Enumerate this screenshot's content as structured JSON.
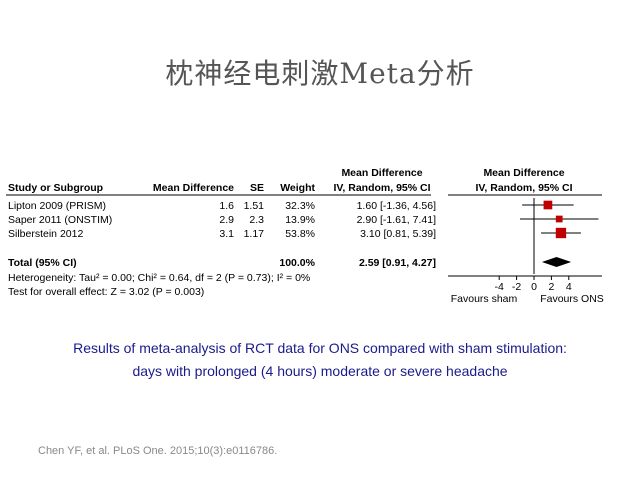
{
  "slide": {
    "title": "枕神经电刺激Meta分析",
    "caption_line1": "Results of meta-analysis of RCT data for ONS compared with sham stimulation:",
    "caption_line2": "days with prolonged (4 hours) moderate or severe headache",
    "citation": "Chen YF,  et al. PLoS One. 2015;10(3):e0116786."
  },
  "chart_data": {
    "type": "forest",
    "headers": {
      "study": "Study or Subgroup",
      "md": "Mean Difference",
      "se": "SE",
      "weight": "Weight",
      "ci_top": "Mean Difference",
      "ci_bottom": "IV, Random, 95% CI",
      "plot_top": "Mean Difference",
      "plot_bottom": "IV, Random, 95% CI"
    },
    "studies": [
      {
        "name": "Lipton 2009 (PRISM)",
        "md": 1.6,
        "md_text": "1.6",
        "se_text": "1.51",
        "weight": 32.3,
        "weight_text": "32.3%",
        "lo": -1.36,
        "hi": 4.56,
        "ci_text": "1.60 [-1.36, 4.56]"
      },
      {
        "name": "Saper 2011 (ONSTIM)",
        "md": 2.9,
        "md_text": "2.9",
        "se_text": "2.3",
        "weight": 13.9,
        "weight_text": "13.9%",
        "lo": -1.61,
        "hi": 7.41,
        "ci_text": "2.90 [-1.61, 7.41]"
      },
      {
        "name": "Silberstein 2012",
        "md": 3.1,
        "md_text": "3.1",
        "se_text": "1.17",
        "weight": 53.8,
        "weight_text": "53.8%",
        "lo": 0.81,
        "hi": 5.39,
        "ci_text": "3.10 [0.81, 5.39]"
      }
    ],
    "total": {
      "name": "Total (95% CI)",
      "weight_text": "100.0%",
      "est": 2.59,
      "lo": 0.91,
      "hi": 4.27,
      "ci_text": "2.59 [0.91, 4.27]"
    },
    "heterogeneity": "Heterogeneity: Tau² = 0.00; Chi² = 0.64, df = 2 (P = 0.73); I² = 0%",
    "overall_effect": "Test for overall effect: Z = 3.02 (P = 0.003)",
    "axis": {
      "ticks": [
        -4,
        -2,
        0,
        2,
        4
      ],
      "tick_labels": [
        "-4",
        "-2",
        "0",
        "2",
        "4"
      ],
      "label_left": "Favours sham",
      "label_right": "Favours ONS"
    },
    "colors": {
      "study_marker": "#c00000",
      "summary_diamond": "#000000"
    }
  }
}
